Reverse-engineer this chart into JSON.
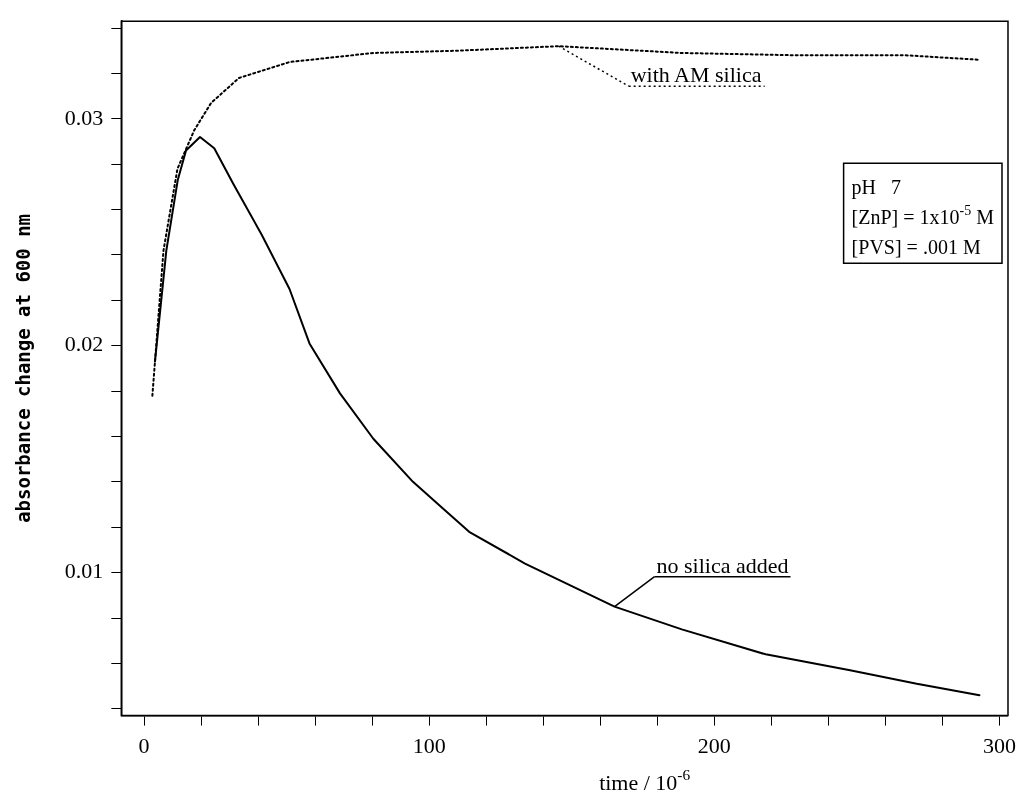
{
  "chart_data": {
    "type": "line",
    "xlabel": "time / 10$^{-6}$",
    "ylabel": "absorbance change at 600 nm",
    "xlim": [
      -8,
      303
    ],
    "ylim": [
      0.0037,
      0.0343
    ],
    "xticks": [
      0,
      {
        "value": 20,
        "label": null
      },
      {
        "value": 40,
        "label": null
      },
      {
        "value": 60,
        "label": null
      },
      {
        "value": 80,
        "label": null
      },
      100,
      {
        "value": 120,
        "label": null
      },
      {
        "value": 140,
        "label": null
      },
      {
        "value": 160,
        "label": null
      },
      {
        "value": 180,
        "label": null
      },
      200,
      {
        "value": 220,
        "label": null
      },
      {
        "value": 240,
        "label": null
      },
      {
        "value": 260,
        "label": null
      },
      {
        "value": 280,
        "label": null
      },
      300
    ],
    "yticks": [
      {
        "value": 0.004,
        "label": null
      },
      {
        "value": 0.006,
        "label": null
      },
      {
        "value": 0.008,
        "label": null
      },
      0.01,
      {
        "value": 0.012,
        "label": null
      },
      {
        "value": 0.014,
        "label": null
      },
      {
        "value": 0.016,
        "label": null
      },
      {
        "value": 0.018,
        "label": null
      },
      0.02,
      {
        "value": 0.022,
        "label": null
      },
      {
        "value": 0.024,
        "label": null
      },
      {
        "value": 0.026,
        "label": null
      },
      {
        "value": 0.028,
        "label": null
      },
      0.03,
      {
        "value": 0.032,
        "label": null
      },
      {
        "value": 0.034,
        "label": null
      }
    ],
    "grid": false,
    "legend": "top right",
    "marker": "none",
    "series": [
      {
        "name": "with AM silica",
        "color": "#000000",
        "line_style": "dotted",
        "x": [
          2.9,
          6.8,
          11.7,
          17.6,
          23.5,
          33.3,
          51,
          80.4,
          110,
          145.4,
          188.6,
          228,
          267,
          293
        ],
        "values": [
          0.0178,
          0.0242,
          0.0278,
          0.0295,
          0.0307,
          0.0318,
          0.0325,
          0.0329,
          0.033,
          0.0332,
          0.0329,
          0.0328,
          0.0328,
          0.0326
        ]
      },
      {
        "name": "no silica added",
        "color": "#000000",
        "line_style": "solid",
        "x": [
          3.8,
          7.8,
          11.8,
          14.7,
          19.6,
          24.6,
          31.4,
          41.2,
          51,
          58,
          68.7,
          80.4,
          94.3,
          114,
          133.6,
          165,
          188.6,
          218,
          247.6,
          271,
          293
        ],
        "values": [
          0.0193,
          0.0242,
          0.0273,
          0.0286,
          0.0292,
          0.0287,
          0.0271,
          0.0249,
          0.0225,
          0.0201,
          0.0179,
          0.0159,
          0.014,
          0.0118,
          0.0104,
          0.0085,
          0.0075,
          0.0064,
          0.0057,
          0.0051,
          0.0046
        ]
      }
    ],
    "annotations": [
      "pH   7",
      "[ZnP] = 1x10$^{-5}$ M",
      "[PVS] = .001 M"
    ]
  }
}
